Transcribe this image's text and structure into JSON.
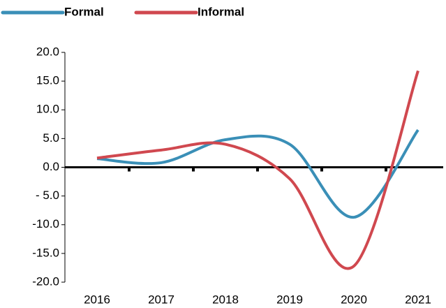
{
  "chart_data": {
    "type": "line",
    "categories": [
      "2016",
      "2017",
      "2018",
      "2019",
      "2020",
      "2021"
    ],
    "series": [
      {
        "name": "Formal",
        "color": "#3a8fb7",
        "values": [
          1.5,
          0.8,
          4.8,
          4.0,
          -8.7,
          6.5
        ]
      },
      {
        "name": "Informal",
        "color": "#d0484f",
        "values": [
          1.6,
          3.0,
          4.0,
          -2.0,
          -17.2,
          16.8
        ]
      }
    ],
    "ylim": [
      -20,
      20
    ],
    "yticks": [
      {
        "value": -20,
        "label": "-20.0"
      },
      {
        "value": -15,
        "label": "-15.0"
      },
      {
        "value": -10,
        "label": "-10.0"
      },
      {
        "value": -5,
        "label": "- 5.0"
      },
      {
        "value": 0,
        "label": "0.0"
      },
      {
        "value": 5,
        "label": "5.0"
      },
      {
        "value": 10,
        "label": "10.0"
      },
      {
        "value": 15,
        "label": "15.0"
      },
      {
        "value": 20,
        "label": "20.0"
      }
    ],
    "legend": "top-left"
  }
}
